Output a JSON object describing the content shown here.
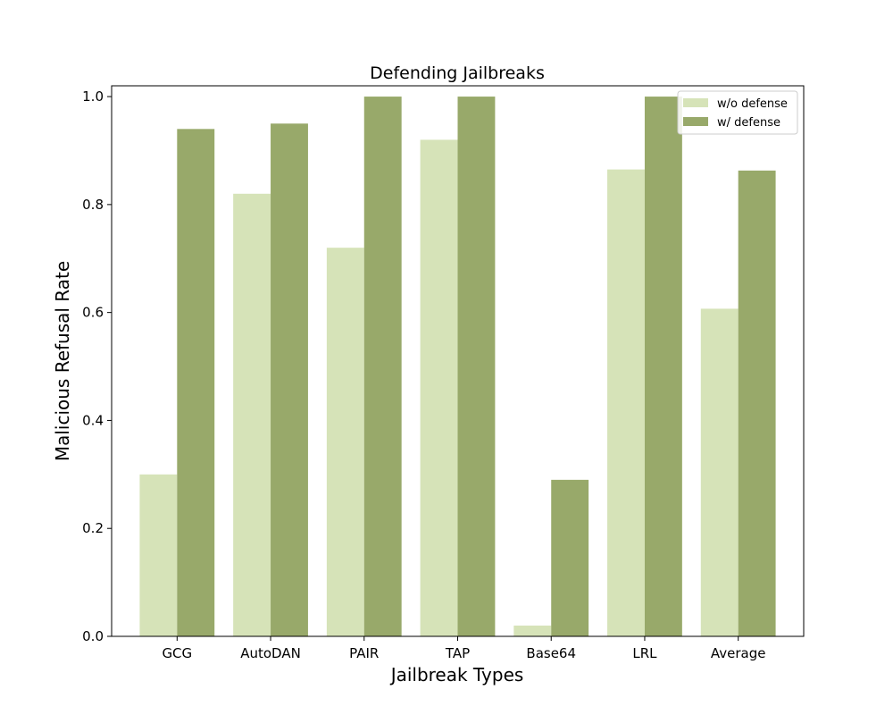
{
  "chart_data": {
    "type": "bar",
    "title": "Defending Jailbreaks",
    "xlabel": "Jailbreak Types",
    "ylabel": "Malicious Refusal Rate",
    "categories": [
      "GCG",
      "AutoDAN",
      "PAIR",
      "TAP",
      "Base64",
      "LRL",
      "Average"
    ],
    "series": [
      {
        "name": "w/o defense",
        "color": "#d6e3b8",
        "values": [
          0.3,
          0.82,
          0.72,
          0.92,
          0.02,
          0.865,
          0.607
        ]
      },
      {
        "name": "w/ defense",
        "color": "#98a96a",
        "values": [
          0.94,
          0.95,
          1.0,
          1.0,
          0.29,
          1.0,
          0.863
        ]
      }
    ],
    "ylim": [
      0,
      1.02
    ],
    "yticks": [
      "0.0",
      "0.2",
      "0.4",
      "0.6",
      "0.8",
      "1.0"
    ],
    "grid": false,
    "legend": "top-right"
  }
}
